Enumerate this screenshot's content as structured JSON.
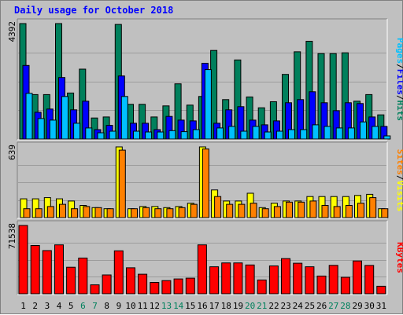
{
  "chart_data": {
    "title": "Daily usage for October 2018",
    "type": "bar",
    "days": [
      "1",
      "2",
      "3",
      "4",
      "5",
      "6",
      "7",
      "8",
      "9",
      "10",
      "11",
      "12",
      "13",
      "14",
      "15",
      "16",
      "17",
      "18",
      "19",
      "20",
      "21",
      "22",
      "23",
      "24",
      "25",
      "26",
      "27",
      "28",
      "29",
      "30",
      "31"
    ],
    "weekend_days": [
      "6",
      "7",
      "13",
      "14",
      "20",
      "21",
      "27",
      "28"
    ],
    "colors": {
      "hits": "#00805c",
      "files": "#0000ff",
      "pages": "#00c0ff",
      "visits": "#ffff00",
      "sites": "#ff8000",
      "kbytes": "#ff0000",
      "weekend_label": "#00805c",
      "weekday_label": "#000000",
      "title": "#0000ff"
    },
    "panels": [
      {
        "name": "hits-files-pages",
        "ymax_label": "4392",
        "ymax": 4392,
        "series": [
          {
            "name": "Hits",
            "key": "hits",
            "values": [
              4392,
              1690,
              1690,
              4392,
              1750,
              2660,
              800,
              840,
              4360,
              1320,
              1320,
              840,
              1260,
              2100,
              1290,
              1620,
              3370,
              1500,
              3010,
              1600,
              1190,
              1420,
              2460,
              3320,
              3720,
              3250,
              3250,
              3280,
              1440,
              1690,
              920
            ]
          },
          {
            "name": "Files",
            "key": "files",
            "values": [
              2800,
              1020,
              1140,
              2340,
              1110,
              1440,
              360,
              520,
              2400,
              600,
              600,
              360,
              860,
              720,
              690,
              2880,
              600,
              1110,
              1230,
              720,
              540,
              690,
              1380,
              1500,
              1800,
              1380,
              1080,
              1380,
              1350,
              840,
              480
            ]
          },
          {
            "name": "Pages",
            "key": "pages",
            "values": [
              1740,
              780,
              720,
              1620,
              600,
              420,
              240,
              300,
              1620,
              300,
              270,
              270,
              320,
              280,
              360,
              2640,
              420,
              480,
              300,
              480,
              270,
              300,
              360,
              360,
              540,
              480,
              420,
              420,
              650,
              480,
              120
            ]
          }
        ],
        "legend": [
          {
            "text": "Pages",
            "key": "pages"
          },
          {
            "text": "/",
            "key": "slash"
          },
          {
            "text": "Files",
            "key": "files"
          },
          {
            "text": "/",
            "key": "slash"
          },
          {
            "text": "Hits",
            "key": "hits"
          }
        ]
      },
      {
        "name": "visits-sites",
        "ymax_label": "639",
        "ymax": 639,
        "series": [
          {
            "name": "Visits",
            "key": "visits",
            "values": [
              170,
              170,
              180,
              170,
              150,
              110,
              90,
              80,
              639,
              80,
              100,
              100,
              90,
              100,
              130,
              639,
              250,
              150,
              150,
              220,
              90,
              130,
              150,
              150,
              190,
              190,
              190,
              190,
              200,
              210,
              80
            ]
          },
          {
            "name": "Sites",
            "key": "sites",
            "values": [
              80,
              80,
              100,
              120,
              80,
              100,
              90,
              80,
              610,
              80,
              90,
              80,
              80,
              90,
              120,
              620,
              190,
              120,
              120,
              130,
              80,
              100,
              140,
              140,
              150,
              110,
              100,
              110,
              130,
              180,
              80
            ]
          }
        ],
        "legend": [
          {
            "text": "Sites",
            "key": "sites"
          },
          {
            "text": "/",
            "key": "slash"
          },
          {
            "text": "Visits",
            "key": "visits"
          }
        ]
      },
      {
        "name": "kbytes",
        "ymax_label": "71538",
        "ymax": 71538,
        "series": [
          {
            "name": "KBytes",
            "key": "kbytes",
            "values": [
              71538,
              50600,
              45200,
              51200,
              27800,
              37400,
              9400,
              19700,
              45000,
              27200,
              20500,
              11900,
              13800,
              15500,
              16400,
              51200,
              28300,
              32300,
              32300,
              30200,
              14500,
              29200,
              36800,
              32000,
              28300,
              18600,
              29800,
              17300,
              34400,
              29700,
              7900
            ]
          }
        ],
        "legend": [
          {
            "text": "KBytes",
            "key": "kbytes"
          }
        ]
      }
    ]
  }
}
